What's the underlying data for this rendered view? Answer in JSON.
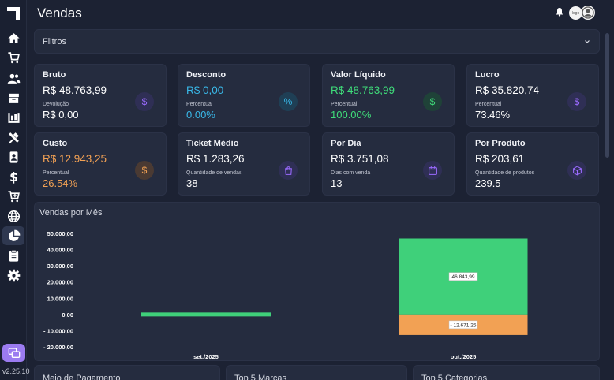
{
  "app": {
    "version": "v2.25.10",
    "page_title": "Vendas"
  },
  "header": {
    "logo_badge_text": "logo"
  },
  "filters": {
    "label": "Filtros"
  },
  "cards": [
    {
      "title": "Bruto",
      "value": "R$ 48.763,99",
      "sublabel": "Devolução",
      "subvalue": "R$ 0,00",
      "value_color": "#ffffff",
      "sub_color": "#ffffff",
      "icon": "dollar-icon",
      "icon_glyph": "$",
      "icon_color": "#9b6bff",
      "icon_bg": "#2f2f55"
    },
    {
      "title": "Desconto",
      "value": "R$ 0,00",
      "sublabel": "Percentual",
      "subvalue": "0.00%",
      "value_color": "#39b8e8",
      "sub_color": "#39b8e8",
      "icon": "percent-icon",
      "icon_glyph": "%",
      "icon_color": "#39b8e8",
      "icon_bg": "#1f3f55"
    },
    {
      "title": "Valor Líquido",
      "value": "R$ 48.763,99",
      "sublabel": "Percentual",
      "subvalue": "100.00%",
      "value_color": "#3fdc7a",
      "sub_color": "#3fdc7a",
      "icon": "dollar-icon",
      "icon_glyph": "$",
      "icon_color": "#3fdc7a",
      "icon_bg": "#1f4238"
    },
    {
      "title": "Lucro",
      "value": "R$ 35.820,74",
      "sublabel": "Percentual",
      "subvalue": "73.46%",
      "value_color": "#ffffff",
      "sub_color": "#ffffff",
      "icon": "dollar-icon",
      "icon_glyph": "$",
      "icon_color": "#9b6bff",
      "icon_bg": "#2f2f55"
    },
    {
      "title": "Custo",
      "value": "R$ 12.943,25",
      "sublabel": "Percentual",
      "subvalue": "26.54%",
      "value_color": "#f2a154",
      "sub_color": "#f2a154",
      "icon": "dollar-icon",
      "icon_glyph": "$",
      "icon_color": "#f2a154",
      "icon_bg": "#4a3a33"
    },
    {
      "title": "Ticket Médio",
      "value": "R$ 1.283,26",
      "sublabel": "Quantidade de vendas",
      "subvalue": "38",
      "value_color": "#ffffff",
      "sub_color": "#ffffff",
      "icon": "shopping-bag-icon",
      "icon_glyph": "",
      "icon_color": "#9b6bff",
      "icon_bg": "#2f2f55"
    },
    {
      "title": "Por Dia",
      "value": "R$ 3.751,08",
      "sublabel": "Dias com venda",
      "subvalue": "13",
      "value_color": "#ffffff",
      "sub_color": "#ffffff",
      "icon": "calendar-icon",
      "icon_glyph": "",
      "icon_color": "#9b6bff",
      "icon_bg": "#2f2f55"
    },
    {
      "title": "Por Produto",
      "value": "R$ 203,61",
      "sublabel": "Quantidade de produtos",
      "subvalue": "239.5",
      "value_color": "#ffffff",
      "sub_color": "#ffffff",
      "icon": "box-icon",
      "icon_glyph": "",
      "icon_color": "#9b6bff",
      "icon_bg": "#2f2f55"
    }
  ],
  "chart": {
    "title": "Vendas por Mês"
  },
  "chart_data": {
    "type": "bar",
    "title": "Vendas por Mês",
    "categories": [
      "set./2025",
      "out./2025"
    ],
    "series": [
      {
        "values": [
          0,
          46843.99
        ],
        "color": "#3fd07a"
      },
      {
        "values": [
          0,
          -12671.25
        ],
        "color": "#f2a154"
      }
    ],
    "data_labels": [
      "46.843,99",
      "- 12.671,25"
    ],
    "ylim": [
      -20000,
      50000
    ],
    "yticks": [
      50000,
      40000,
      30000,
      20000,
      10000,
      0,
      -10000,
      -20000
    ],
    "ytick_labels": [
      "50.000,00",
      "40.000,00",
      "30.000,00",
      "20.000,00",
      "10.000,00",
      "0,00",
      "- 10.000,00",
      "- 20.000,00"
    ],
    "grid": false
  },
  "bottom_panels": [
    {
      "title": "Meio de Pagamento"
    },
    {
      "title": "Top 5 Marcas"
    },
    {
      "title": "Top 5 Categorias"
    }
  ]
}
